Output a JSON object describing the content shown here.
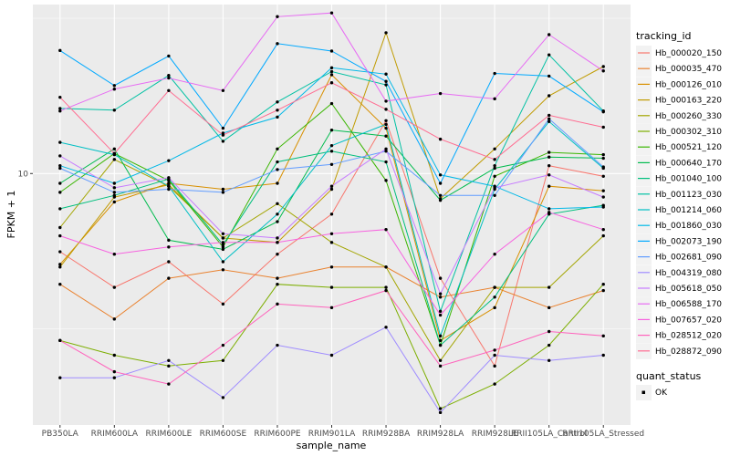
{
  "chart_data": {
    "type": "line",
    "xlabel": "sample_name",
    "ylabel": "FPKM + 1",
    "y_scale": "log10",
    "ylim": [
      1.55,
      35
    ],
    "y_ticks": [
      10
    ],
    "y_tick_labels": [
      "10"
    ],
    "grid": true,
    "legend_position": "right",
    "categories": [
      "PB350LA",
      "RRIM600LA",
      "RRIM600LE",
      "RRIM600SE",
      "RRIM600PE",
      "RRIM901LA",
      "RRIM928BA",
      "RRIM928LA",
      "RRIM928LE",
      "RRII105LA_Control",
      "RRII105LA_Stressed"
    ],
    "series": [
      {
        "name": "Hb_000020_150",
        "color": "#F8766D",
        "values": [
          5.6,
          4.3,
          5.2,
          3.8,
          5.5,
          7.4,
          14.8,
          4.6,
          2.4,
          10.6,
          9.8
        ]
      },
      {
        "name": "Hb_000035_470",
        "color": "#EA8331",
        "values": [
          4.4,
          3.4,
          4.6,
          4.9,
          4.6,
          5.0,
          5.0,
          4.0,
          4.3,
          3.7,
          4.2
        ]
      },
      {
        "name": "Hb_000126_010",
        "color": "#D89000",
        "values": [
          5.1,
          8.1,
          9.3,
          8.9,
          9.3,
          20.8,
          14.0,
          2.9,
          3.7,
          9.1,
          8.8
        ]
      },
      {
        "name": "Hb_000163_220",
        "color": "#C09B00",
        "values": [
          5.0,
          8.4,
          9.2,
          6.2,
          6.0,
          8.9,
          28.4,
          8.3,
          12.0,
          17.8,
          22.1
        ]
      },
      {
        "name": "Hb_000260_330",
        "color": "#A3A500",
        "values": [
          6.7,
          11.1,
          9.1,
          6.2,
          8.0,
          6.0,
          5.0,
          2.5,
          4.3,
          4.3,
          6.3
        ]
      },
      {
        "name": "Hb_000302_310",
        "color": "#7CAE00",
        "values": [
          2.9,
          2.6,
          2.4,
          2.5,
          4.4,
          4.3,
          4.3,
          1.75,
          2.1,
          2.8,
          4.4
        ]
      },
      {
        "name": "Hb_000521_120",
        "color": "#39B600",
        "values": [
          8.7,
          11.6,
          9.5,
          5.8,
          12.0,
          16.8,
          9.5,
          2.8,
          9.8,
          11.7,
          11.5
        ]
      },
      {
        "name": "Hb_000640_170",
        "color": "#00BB4E",
        "values": [
          9.3,
          12.0,
          6.1,
          5.7,
          7.0,
          13.8,
          13.2,
          8.2,
          10.4,
          11.3,
          11.2
        ]
      },
      {
        "name": "Hb_001040_100",
        "color": "#00BF7D",
        "values": [
          7.7,
          8.5,
          9.6,
          5.9,
          10.9,
          11.8,
          10.9,
          2.8,
          4.0,
          7.4,
          7.9
        ]
      },
      {
        "name": "Hb_001123_030",
        "color": "#00C1A3",
        "values": [
          16.2,
          16.0,
          20.7,
          12.7,
          17.0,
          21.3,
          19.3,
          3.6,
          10.6,
          24.1,
          15.9
        ]
      },
      {
        "name": "Hb_001214_060",
        "color": "#00BFC4",
        "values": [
          12.6,
          11.5,
          9.1,
          5.2,
          7.4,
          12.3,
          14.4,
          3.0,
          8.9,
          14.7,
          10.4
        ]
      },
      {
        "name": "Hb_001860_030",
        "color": "#00B8E7",
        "values": [
          10.6,
          9.3,
          11.0,
          13.5,
          15.2,
          21.9,
          20.9,
          9.9,
          9.1,
          7.7,
          7.8
        ]
      },
      {
        "name": "Hb_002073_190",
        "color": "#00A9FF",
        "values": [
          24.9,
          19.2,
          23.9,
          14.0,
          26.2,
          24.8,
          19.8,
          9.3,
          21.0,
          20.6,
          15.8
        ]
      },
      {
        "name": "Hb_002681_090",
        "color": "#619CFF",
        "values": [
          10.4,
          8.7,
          8.9,
          8.7,
          10.3,
          10.7,
          11.8,
          8.5,
          8.5,
          15.0,
          10.5
        ]
      },
      {
        "name": "Hb_004319_080",
        "color": "#9F8CFF",
        "values": [
          2.2,
          2.2,
          2.5,
          1.9,
          2.8,
          2.6,
          3.2,
          1.7,
          2.6,
          2.5,
          2.6
        ]
      },
      {
        "name": "Hb_005618_050",
        "color": "#C77CFF",
        "values": [
          11.4,
          9.0,
          9.7,
          6.4,
          6.2,
          9.1,
          12.0,
          4.1,
          9.0,
          9.9,
          8.4
        ]
      },
      {
        "name": "Hb_006588_170",
        "color": "#E76BF3",
        "values": [
          15.9,
          18.7,
          20.3,
          18.5,
          32.0,
          32.9,
          17.1,
          18.1,
          17.4,
          28.0,
          21.4
        ]
      },
      {
        "name": "Hb_007657_020",
        "color": "#F763E0",
        "values": [
          6.3,
          5.5,
          5.8,
          6.0,
          6.0,
          6.4,
          6.6,
          3.5,
          5.5,
          7.5,
          6.6
        ]
      },
      {
        "name": "Hb_028512_020",
        "color": "#FF62BC",
        "values": [
          2.9,
          2.3,
          2.1,
          2.8,
          3.8,
          3.7,
          4.2,
          2.4,
          2.7,
          3.1,
          3.0
        ]
      },
      {
        "name": "Hb_028872_090",
        "color": "#FF6C91",
        "values": [
          17.6,
          11.6,
          18.5,
          13.3,
          16.0,
          19.6,
          16.1,
          12.9,
          11.1,
          15.4,
          14.1
        ]
      }
    ]
  },
  "legend": {
    "title": "tracking_id",
    "quant_title": "quant_status",
    "quant_items": [
      {
        "label": "OK"
      }
    ]
  },
  "colors": {
    "panel_bg": "#EBEBEB",
    "grid_major": "#FFFFFF",
    "point": "#000000"
  }
}
